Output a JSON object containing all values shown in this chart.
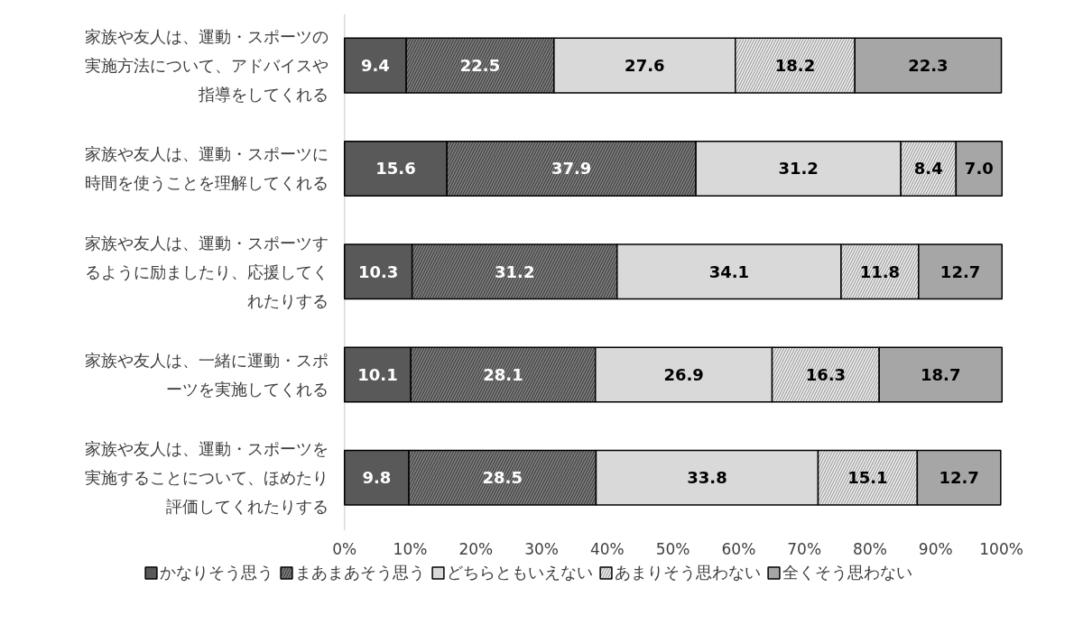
{
  "chart_data": {
    "type": "bar",
    "orientation": "horizontal",
    "stacked": true,
    "data_labels": true,
    "grid": false,
    "legend": "bottom",
    "categories": [
      "家族や友人は、運動・スポーツの実施方法について、アドバイスや指導をしてくれる",
      "家族や友人は、運動・スポーツに時間を使うことを理解してくれる",
      "家族や友人は、運動・スポーツするように励ましたり、応援してくれたりする",
      "家族や友人は、一緒に運動・スポーツを実施してくれる",
      "家族や友人は、運動・スポーツを実施することについて、ほめたり評価してくれたりする"
    ],
    "xlim": [
      0,
      100
    ],
    "xticks": [
      {
        "value": 0,
        "label": "0%"
      },
      {
        "value": 10,
        "label": "10%"
      },
      {
        "value": 20,
        "label": "20%"
      },
      {
        "value": 30,
        "label": "30%"
      },
      {
        "value": 40,
        "label": "40%"
      },
      {
        "value": 50,
        "label": "50%"
      },
      {
        "value": 60,
        "label": "60%"
      },
      {
        "value": 70,
        "label": "70%"
      },
      {
        "value": 80,
        "label": "80%"
      },
      {
        "value": 90,
        "label": "90%"
      },
      {
        "value": 100,
        "label": "100%"
      }
    ],
    "series": [
      {
        "name": "かなりそう思う",
        "color": "#595959",
        "values": [
          9.4,
          15.6,
          10.3,
          10.1,
          9.8
        ]
      },
      {
        "name": "まあまあそう思う",
        "color": "#808080",
        "values": [
          22.5,
          37.9,
          31.2,
          28.1,
          28.5
        ]
      },
      {
        "name": "どちらともいえない",
        "color": "#d9d9d9",
        "values": [
          27.6,
          31.2,
          34.1,
          26.9,
          33.8
        ]
      },
      {
        "name": "あまりそう思わない",
        "color": "#eeeeee",
        "values": [
          18.2,
          8.4,
          11.8,
          16.3,
          15.1
        ]
      },
      {
        "name": "全くそう思わない",
        "color": "#a6a6a6",
        "values": [
          22.3,
          7.0,
          12.7,
          18.7,
          12.7
        ],
        "value_labels": [
          "22.3",
          "7.0",
          "12.7",
          "18.7",
          "12.7"
        ]
      }
    ]
  }
}
